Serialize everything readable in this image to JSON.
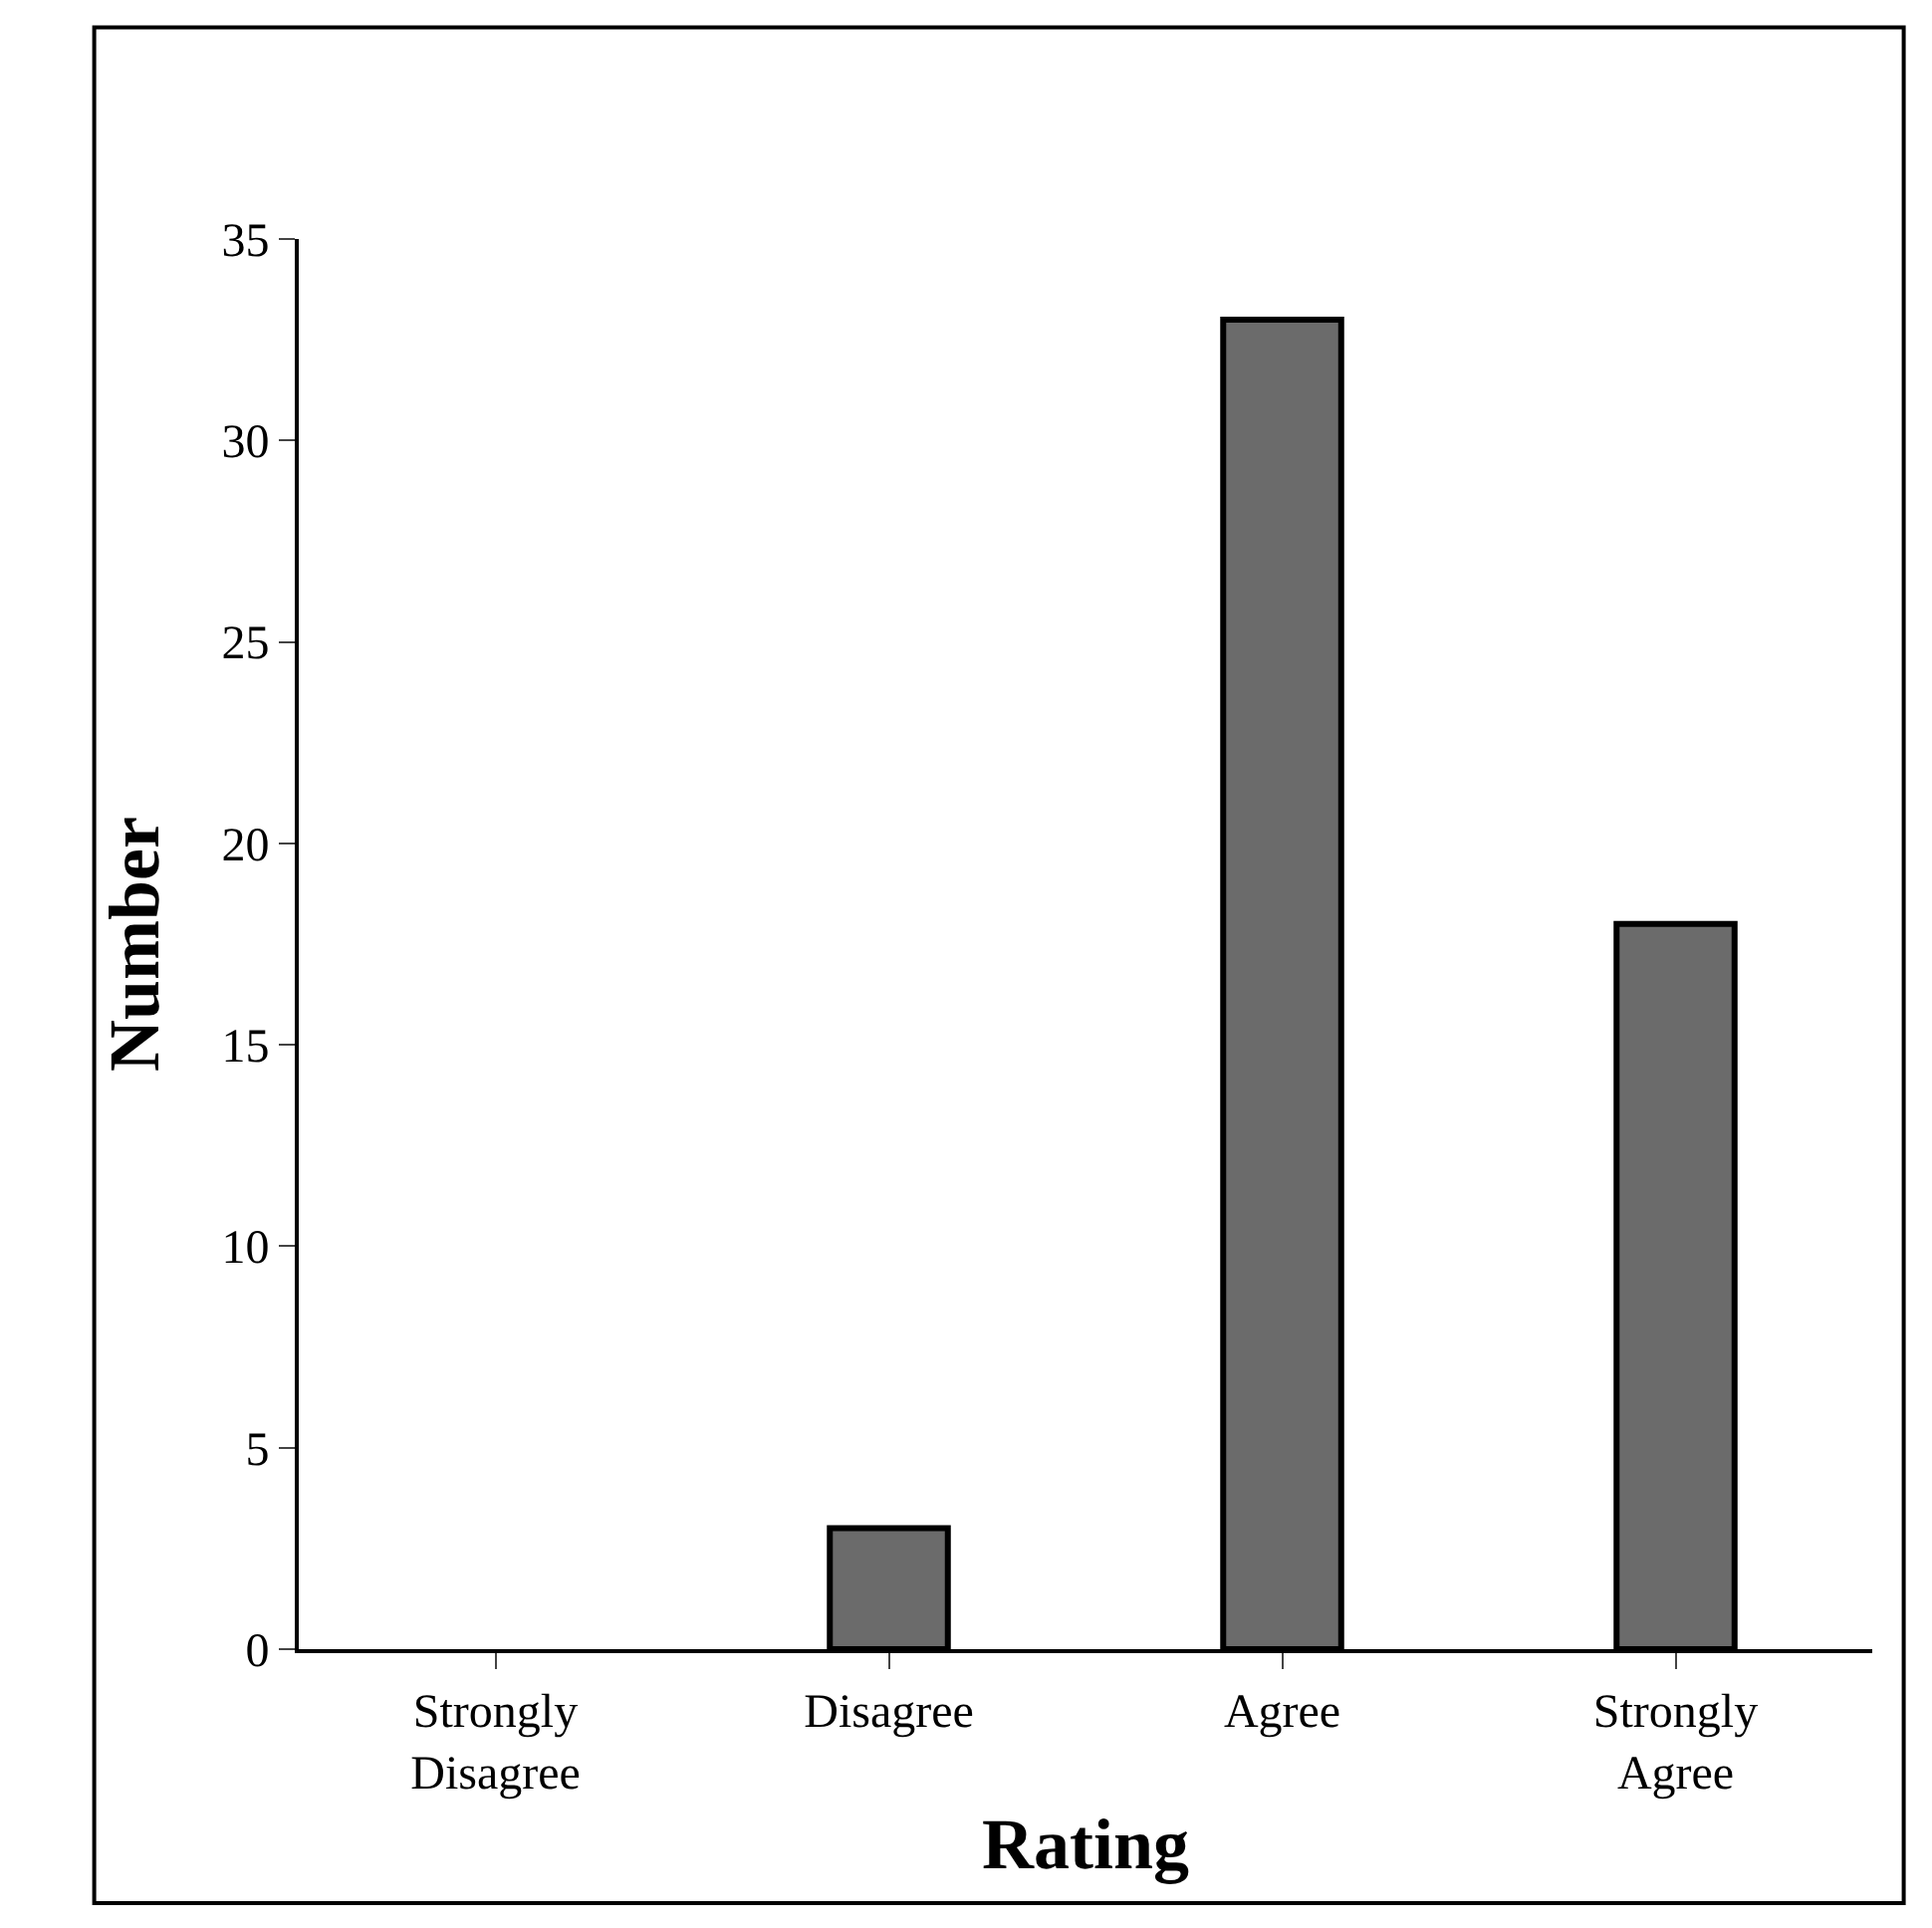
{
  "chart_data": {
    "type": "bar",
    "xlabel": "Rating",
    "ylabel": "Number",
    "categories": [
      "Strongly\nDisagree",
      "Disagree",
      "Agree",
      "Strongly\nAgree"
    ],
    "values": [
      0,
      3,
      33,
      18
    ],
    "color": "#6b6b6b",
    "ylim": [
      0,
      35
    ],
    "yticks": [
      0,
      5,
      10,
      15,
      20,
      25,
      30,
      35
    ]
  }
}
